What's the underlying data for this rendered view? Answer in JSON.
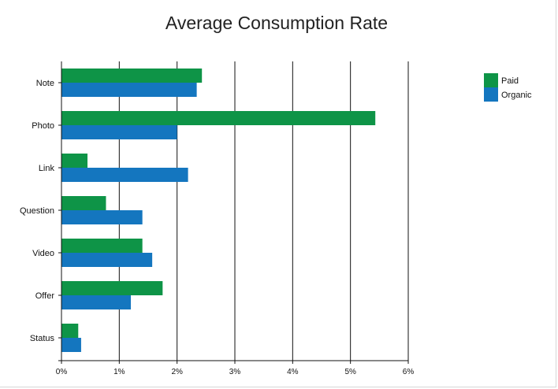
{
  "chart_data": {
    "type": "bar",
    "orientation": "horizontal",
    "title": "Average Consumption Rate",
    "xlabel": "",
    "ylabel": "",
    "categories": [
      "Note",
      "Photo",
      "Link",
      "Question",
      "Video",
      "Offer",
      "Status"
    ],
    "series": [
      {
        "name": "Paid",
        "color": "#0e9447",
        "values": [
          2.43,
          5.43,
          0.45,
          0.77,
          1.4,
          1.75,
          0.29
        ]
      },
      {
        "name": "Organic",
        "color": "#1476bf",
        "values": [
          2.34,
          2.0,
          2.19,
          1.4,
          1.57,
          1.2,
          0.34
        ]
      }
    ],
    "xlim": [
      0,
      6
    ],
    "x_ticks": [
      "0%",
      "1%",
      "2%",
      "3%",
      "4%",
      "5%",
      "6%"
    ],
    "grid": true,
    "legend": "top-right"
  }
}
